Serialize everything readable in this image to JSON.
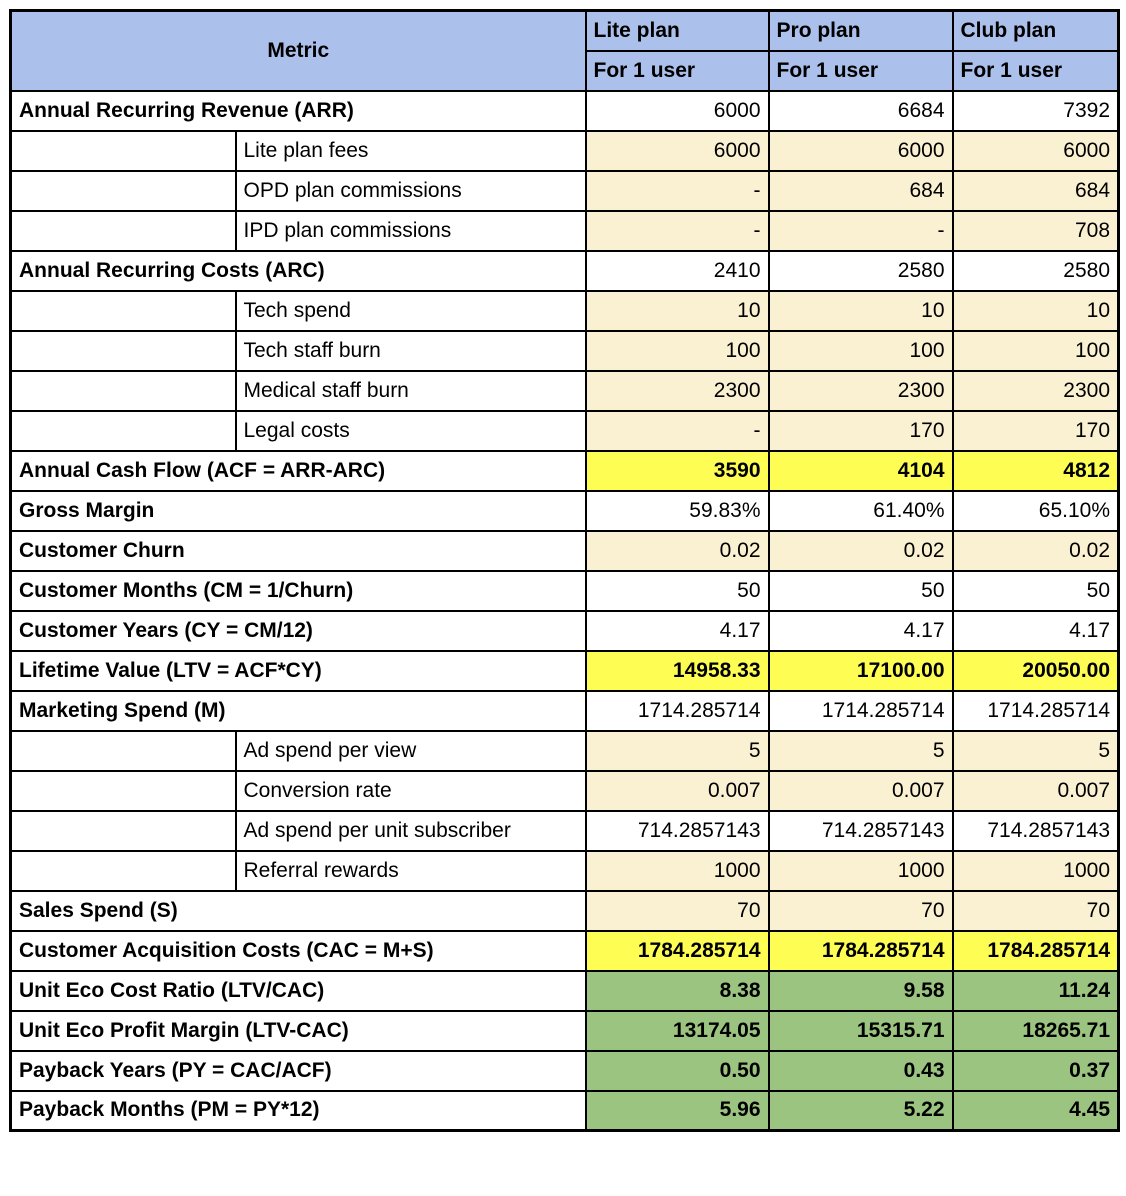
{
  "header": {
    "metric_label": "Metric",
    "plans": [
      {
        "key": "lite",
        "name": "Lite plan",
        "subtitle": "For 1 user"
      },
      {
        "key": "pro",
        "name": "Pro plan",
        "subtitle": "For 1 user"
      },
      {
        "key": "club",
        "name": "Club plan",
        "subtitle": "For 1 user"
      }
    ]
  },
  "colors": {
    "header_blue": "#ABC0EA",
    "input_cream": "#FAF0D2",
    "highlight_yellow": "#FDFD54",
    "result_green": "#9BC480",
    "grid_black": "#000000"
  },
  "rows": [
    {
      "kind": "section",
      "label": "Annual Recurring Revenue (ARR)",
      "values": [
        "6000",
        "6684",
        "7392"
      ],
      "value_bg": "white",
      "label_bg": "white",
      "bold_values": false
    },
    {
      "kind": "sub",
      "label": "Lite plan fees",
      "values": [
        "6000",
        "6000",
        "6000"
      ],
      "value_bg": "cream",
      "label_bg": "white",
      "bold_values": false
    },
    {
      "kind": "sub",
      "label": "OPD plan commissions",
      "values": [
        "-",
        "684",
        "684"
      ],
      "value_bg": "cream",
      "label_bg": "white",
      "bold_values": false
    },
    {
      "kind": "sub",
      "label": "IPD plan commissions",
      "values": [
        "-",
        "-",
        "708"
      ],
      "value_bg": "cream",
      "label_bg": "white",
      "bold_values": false
    },
    {
      "kind": "section",
      "label": "Annual Recurring Costs (ARC)",
      "values": [
        "2410",
        "2580",
        "2580"
      ],
      "value_bg": "white",
      "label_bg": "white",
      "bold_values": false
    },
    {
      "kind": "sub",
      "label": "Tech spend",
      "values": [
        "10",
        "10",
        "10"
      ],
      "value_bg": "cream",
      "label_bg": "white",
      "bold_values": false
    },
    {
      "kind": "sub",
      "label": "Tech staff burn",
      "values": [
        "100",
        "100",
        "100"
      ],
      "value_bg": "cream",
      "label_bg": "white",
      "bold_values": false
    },
    {
      "kind": "sub",
      "label": "Medical staff burn",
      "values": [
        "2300",
        "2300",
        "2300"
      ],
      "value_bg": "cream",
      "label_bg": "white",
      "bold_values": false
    },
    {
      "kind": "sub",
      "label": "Legal costs",
      "values": [
        "-",
        "170",
        "170"
      ],
      "value_bg": "cream",
      "label_bg": "white",
      "bold_values": false
    },
    {
      "kind": "section",
      "label": "Annual Cash Flow (ACF = ARR-ARC)",
      "values": [
        "3590",
        "4104",
        "4812"
      ],
      "value_bg": "yellow",
      "label_bg": "yellow",
      "bold_values": true
    },
    {
      "kind": "section",
      "label": "Gross Margin",
      "values": [
        "59.83%",
        "61.40%",
        "65.10%"
      ],
      "value_bg": "white",
      "label_bg": "white",
      "bold_values": false
    },
    {
      "kind": "section",
      "label": "Customer Churn",
      "values": [
        "0.02",
        "0.02",
        "0.02"
      ],
      "value_bg": "cream",
      "label_bg": "white",
      "bold_values": false
    },
    {
      "kind": "section",
      "label": "Customer Months (CM = 1/Churn)",
      "values": [
        "50",
        "50",
        "50"
      ],
      "value_bg": "white",
      "label_bg": "white",
      "bold_values": false
    },
    {
      "kind": "section",
      "label": "Customer Years (CY = CM/12)",
      "values": [
        "4.17",
        "4.17",
        "4.17"
      ],
      "value_bg": "white",
      "label_bg": "white",
      "bold_values": false
    },
    {
      "kind": "section",
      "label": "Lifetime Value (LTV = ACF*CY)",
      "values": [
        "14958.33",
        "17100.00",
        "20050.00"
      ],
      "value_bg": "yellow",
      "label_bg": "yellow",
      "bold_values": true
    },
    {
      "kind": "section",
      "label": "Marketing Spend (M)",
      "values": [
        "1714.285714",
        "1714.285714",
        "1714.285714"
      ],
      "value_bg": "white",
      "label_bg": "white",
      "bold_values": false
    },
    {
      "kind": "sub",
      "label": "Ad spend per view",
      "values": [
        "5",
        "5",
        "5"
      ],
      "value_bg": "cream",
      "label_bg": "white",
      "bold_values": false
    },
    {
      "kind": "sub",
      "label": "Conversion rate",
      "values": [
        "0.007",
        "0.007",
        "0.007"
      ],
      "value_bg": "cream",
      "label_bg": "white",
      "bold_values": false
    },
    {
      "kind": "sub",
      "label": "Ad spend per unit subscriber",
      "values": [
        "714.2857143",
        "714.2857143",
        "714.2857143"
      ],
      "value_bg": "white",
      "label_bg": "white",
      "bold_values": false
    },
    {
      "kind": "sub",
      "label": "Referral rewards",
      "values": [
        "1000",
        "1000",
        "1000"
      ],
      "value_bg": "cream",
      "label_bg": "white",
      "bold_values": false
    },
    {
      "kind": "section",
      "label": "Sales Spend (S)",
      "values": [
        "70",
        "70",
        "70"
      ],
      "value_bg": "cream",
      "label_bg": "white",
      "bold_values": false
    },
    {
      "kind": "section",
      "label": "Customer Acquisition Costs (CAC = M+S)",
      "values": [
        "1784.285714",
        "1784.285714",
        "1784.285714"
      ],
      "value_bg": "yellow",
      "label_bg": "yellow",
      "bold_values": true
    },
    {
      "kind": "section",
      "label": "Unit Eco Cost Ratio (LTV/CAC)",
      "values": [
        "8.38",
        "9.58",
        "11.24"
      ],
      "value_bg": "green",
      "label_bg": "white",
      "bold_values": true
    },
    {
      "kind": "section",
      "label": "Unit Eco Profit Margin (LTV-CAC)",
      "values": [
        "13174.05",
        "15315.71",
        "18265.71"
      ],
      "value_bg": "green",
      "label_bg": "white",
      "bold_values": true
    },
    {
      "kind": "section",
      "label": "Payback Years (PY = CAC/ACF)",
      "values": [
        "0.50",
        "0.43",
        "0.37"
      ],
      "value_bg": "green",
      "label_bg": "white",
      "bold_values": true
    },
    {
      "kind": "section",
      "label": "Payback Months (PM = PY*12)",
      "values": [
        "5.96",
        "5.22",
        "4.45"
      ],
      "value_bg": "green",
      "label_bg": "white",
      "bold_values": true
    }
  ]
}
